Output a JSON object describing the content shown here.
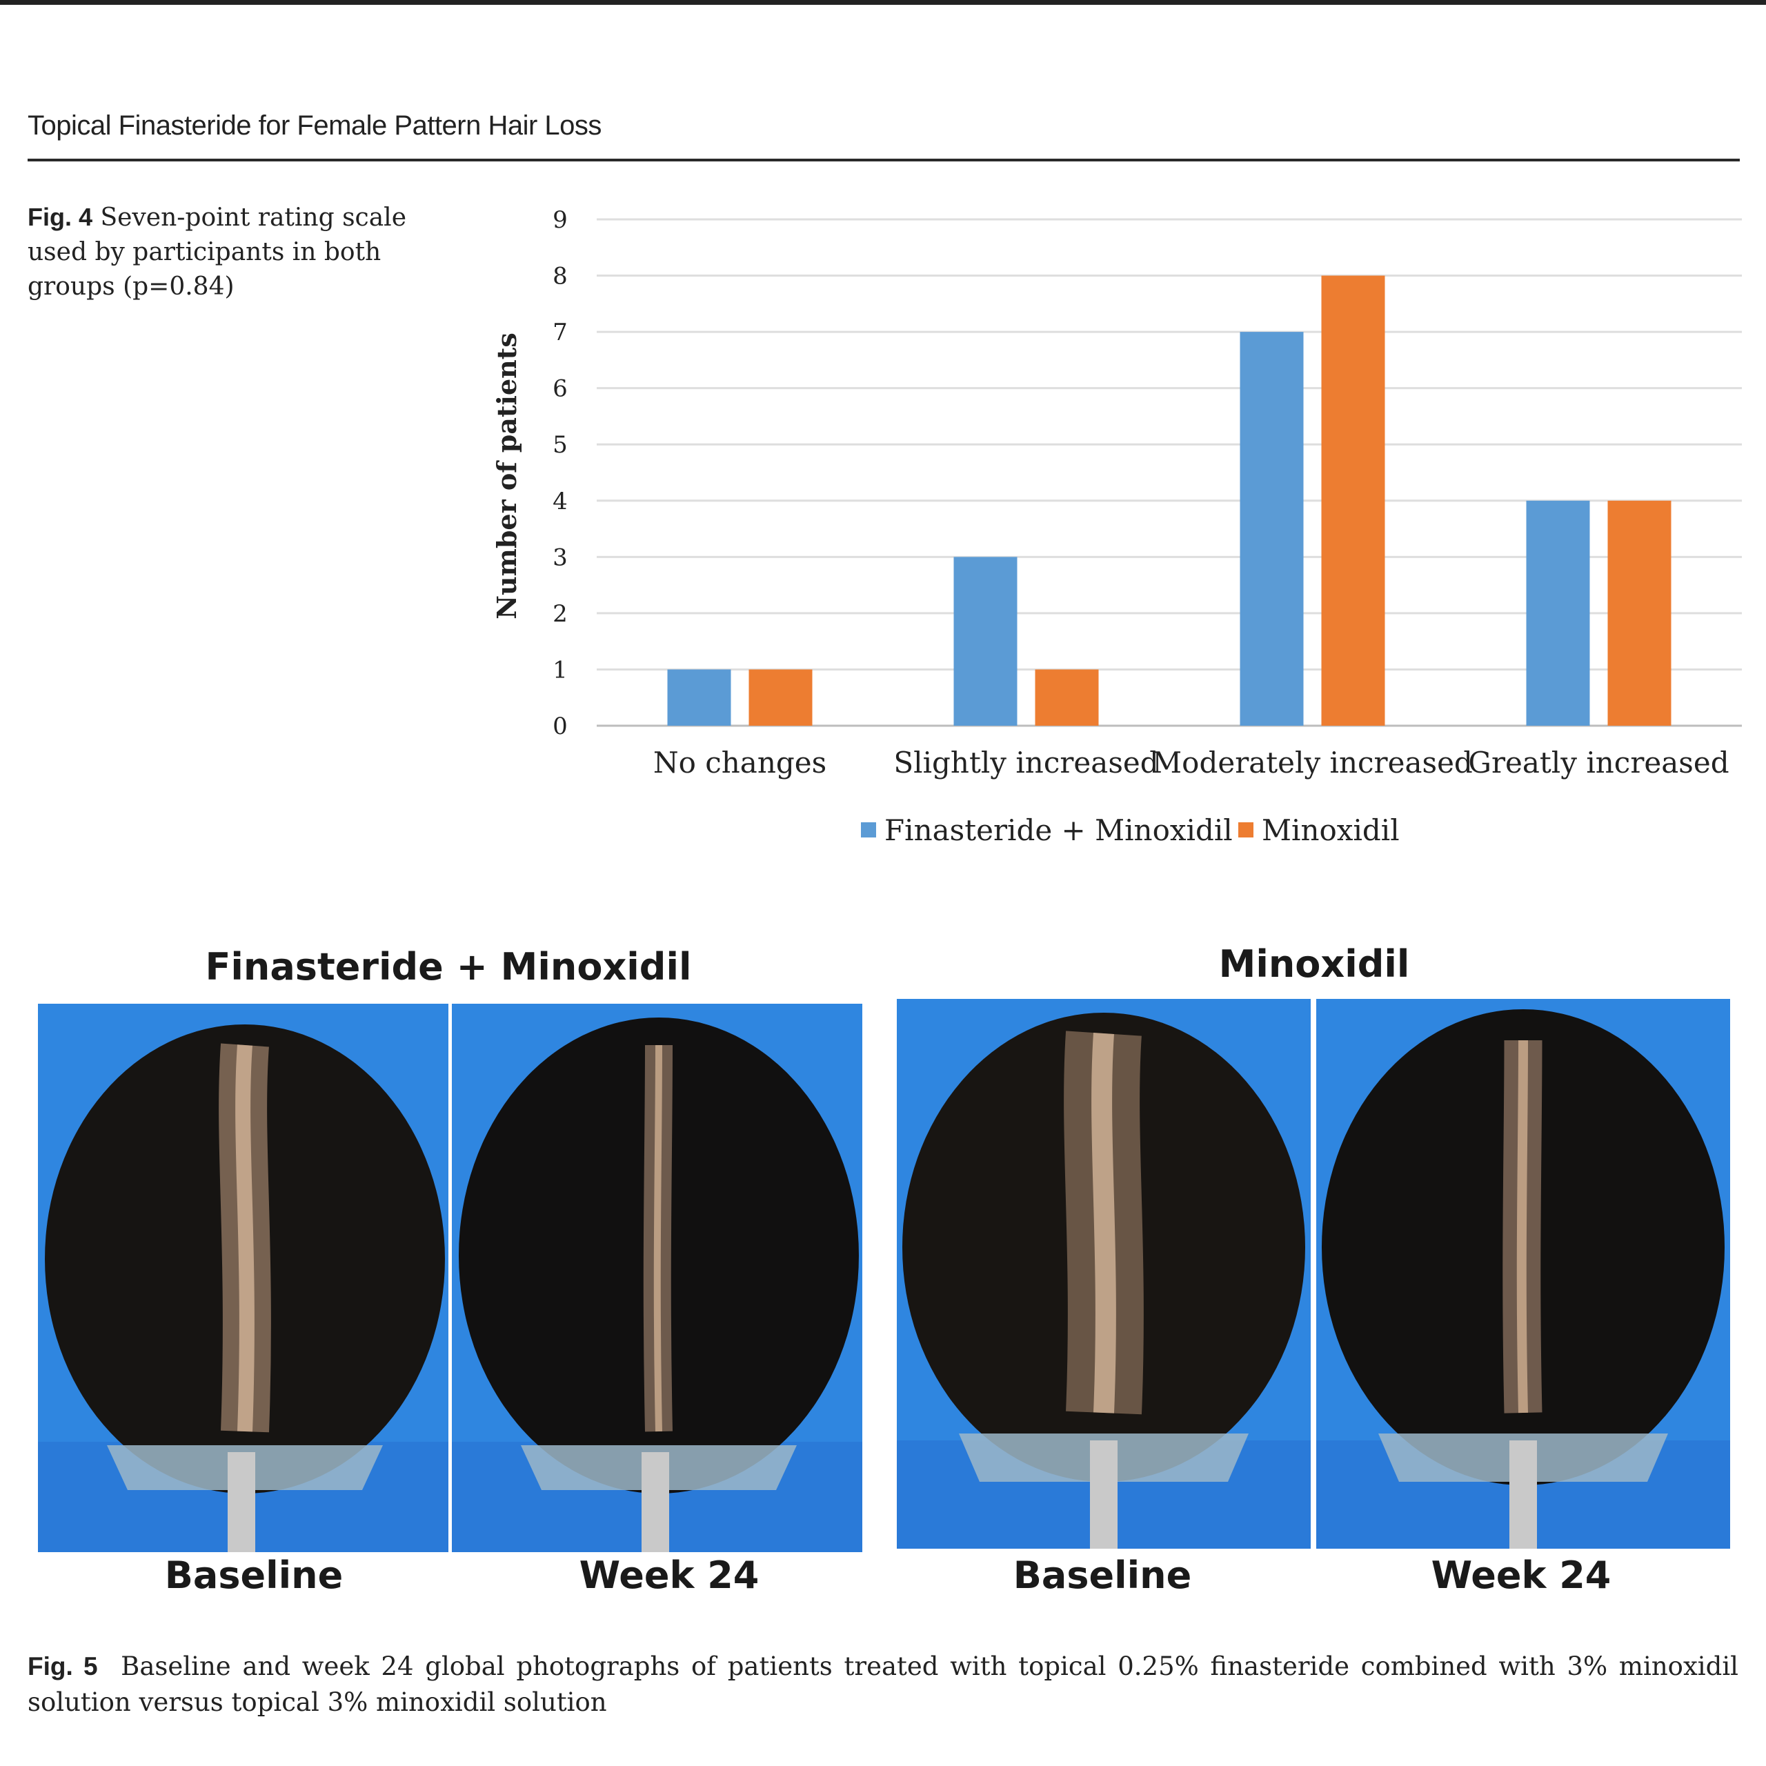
{
  "running_head": "Topical Finasteride for Female Pattern Hair Loss",
  "fig4": {
    "label": "Fig. 4",
    "caption": "Seven-point rating scale used by participants in both groups (p=0.84)"
  },
  "chart_data": {
    "type": "bar",
    "categories": [
      "No changes",
      "Slightly increased",
      "Moderately increased",
      "Greatly increased"
    ],
    "series": [
      {
        "name": "Finasteride + Minoxidil",
        "values": [
          1,
          3,
          7,
          4
        ],
        "color": "#5b9bd5"
      },
      {
        "name": "Minoxidil",
        "values": [
          1,
          1,
          8,
          4
        ],
        "color": "#ed7d31"
      }
    ],
    "ylabel": "Number of patients",
    "xlabel": "",
    "ylim": [
      0,
      9
    ],
    "yticks": [
      "0",
      "1",
      "2",
      "3",
      "4",
      "5",
      "6",
      "7",
      "8",
      "9"
    ],
    "grid": true,
    "legend_position": "bottom"
  },
  "fig5": {
    "label": "Fig. 5",
    "caption": "Baseline and week 24 global photographs of patients treated with topical 0.25% finasteride combined with 3% minoxidil solution versus topical 3% minoxidil solution",
    "groups": [
      {
        "title": "Finasteride + Minoxidil",
        "photos": [
          {
            "label": "Baseline",
            "scalp": "wide-part"
          },
          {
            "label": "Week 24",
            "scalp": "denser"
          }
        ]
      },
      {
        "title": "Minoxidil",
        "photos": [
          {
            "label": "Baseline",
            "scalp": "wide-part"
          },
          {
            "label": "Week 24",
            "scalp": "denser"
          }
        ]
      }
    ],
    "background_color": "#2f86e0"
  }
}
